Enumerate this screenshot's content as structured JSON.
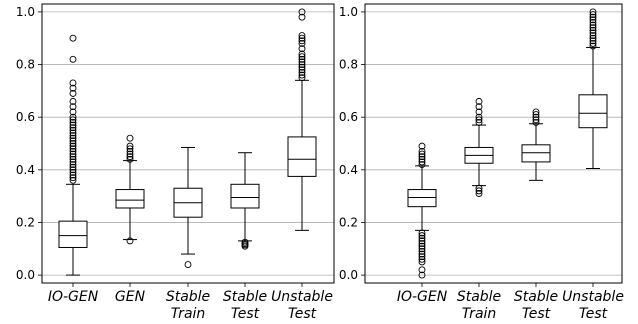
{
  "chart_data": [
    {
      "type": "box",
      "title": "",
      "xlabel": "",
      "ylabel": "",
      "ylim": [
        -0.03,
        1.03
      ],
      "yticks": [
        "0.0",
        "0.2",
        "0.4",
        "0.6",
        "0.8",
        "1.0"
      ],
      "grid": "horizontal",
      "categories": [
        {
          "line1": "IO-GEN",
          "line2": ""
        },
        {
          "line1": "GEN",
          "line2": ""
        },
        {
          "line1": "Stable",
          "line2": "Train"
        },
        {
          "line1": "Stable",
          "line2": "Test"
        },
        {
          "line1": "Unstable",
          "line2": "Test"
        }
      ],
      "boxes": [
        {
          "whisker_low": 0.0,
          "q1": 0.105,
          "median": 0.15,
          "q3": 0.205,
          "whisker_high": 0.345,
          "fliers": [
            0.36,
            0.37,
            0.38,
            0.39,
            0.4,
            0.41,
            0.42,
            0.43,
            0.44,
            0.45,
            0.46,
            0.47,
            0.48,
            0.49,
            0.5,
            0.51,
            0.52,
            0.53,
            0.54,
            0.55,
            0.56,
            0.57,
            0.58,
            0.59,
            0.6,
            0.62,
            0.64,
            0.66,
            0.69,
            0.71,
            0.73,
            0.82,
            0.9
          ]
        },
        {
          "whisker_low": 0.135,
          "q1": 0.255,
          "median": 0.285,
          "q3": 0.325,
          "whisker_high": 0.435,
          "fliers": [
            0.13,
            0.44,
            0.45,
            0.46,
            0.47,
            0.48,
            0.49,
            0.52
          ]
        },
        {
          "whisker_low": 0.08,
          "q1": 0.22,
          "median": 0.275,
          "q3": 0.33,
          "whisker_high": 0.485,
          "fliers": [
            0.04
          ]
        },
        {
          "whisker_low": 0.13,
          "q1": 0.255,
          "median": 0.295,
          "q3": 0.345,
          "whisker_high": 0.465,
          "fliers": [
            0.11,
            0.115,
            0.12,
            0.125
          ]
        },
        {
          "whisker_low": 0.17,
          "q1": 0.375,
          "median": 0.44,
          "q3": 0.525,
          "whisker_high": 0.74,
          "fliers": [
            0.75,
            0.76,
            0.77,
            0.78,
            0.79,
            0.8,
            0.81,
            0.82,
            0.83,
            0.84,
            0.86,
            0.88,
            0.89,
            0.9,
            0.91,
            0.98,
            1.0
          ]
        }
      ]
    },
    {
      "type": "box",
      "title": "",
      "xlabel": "",
      "ylabel": "",
      "ylim": [
        -0.03,
        1.03
      ],
      "yticks": [
        "0.0",
        "0.2",
        "0.4",
        "0.6",
        "0.8",
        "1.0"
      ],
      "grid": "horizontal",
      "categories": [
        {
          "line1": "IO-GEN",
          "line2": ""
        },
        {
          "line1": "Stable",
          "line2": "Train"
        },
        {
          "line1": "Stable",
          "line2": "Test"
        },
        {
          "line1": "Unstable",
          "line2": "Test"
        }
      ],
      "boxes": [
        {
          "whisker_low": 0.17,
          "q1": 0.26,
          "median": 0.295,
          "q3": 0.325,
          "whisker_high": 0.415,
          "fliers": [
            0.0,
            0.02,
            0.05,
            0.06,
            0.07,
            0.08,
            0.09,
            0.1,
            0.11,
            0.12,
            0.13,
            0.14,
            0.15,
            0.16,
            0.42,
            0.43,
            0.44,
            0.45,
            0.46,
            0.47,
            0.49
          ]
        },
        {
          "whisker_low": 0.34,
          "q1": 0.425,
          "median": 0.455,
          "q3": 0.485,
          "whisker_high": 0.57,
          "fliers": [
            0.31,
            0.32,
            0.33,
            0.58,
            0.59,
            0.6,
            0.62,
            0.64,
            0.66
          ]
        },
        {
          "whisker_low": 0.36,
          "q1": 0.43,
          "median": 0.465,
          "q3": 0.495,
          "whisker_high": 0.575,
          "fliers": [
            0.58,
            0.59,
            0.6,
            0.61,
            0.62
          ]
        },
        {
          "whisker_low": 0.405,
          "q1": 0.56,
          "median": 0.615,
          "q3": 0.685,
          "whisker_high": 0.865,
          "fliers": [
            0.87,
            0.88,
            0.89,
            0.9,
            0.91,
            0.92,
            0.93,
            0.94,
            0.95,
            0.96,
            0.97,
            0.98,
            0.99,
            1.0
          ]
        }
      ]
    }
  ]
}
